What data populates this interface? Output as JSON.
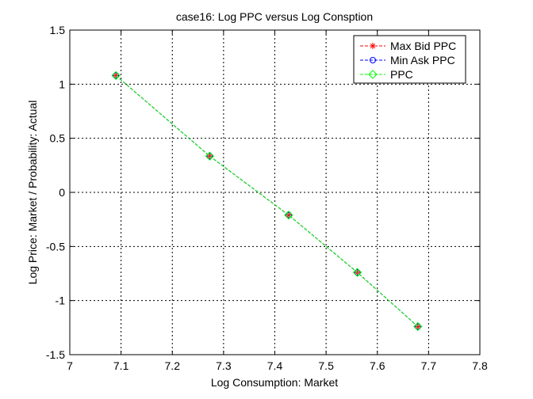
{
  "chart_data": {
    "type": "line",
    "title": "case16: Log PPC versus Log Consption",
    "xlabel": "Log Consumption: Market",
    "ylabel": "Log Price: Market / Probability: Actual",
    "xlim": [
      7,
      7.8
    ],
    "ylim": [
      -1.5,
      1.5
    ],
    "xticks": [
      7,
      7.1,
      7.2,
      7.3,
      7.4,
      7.5,
      7.6,
      7.7,
      7.8
    ],
    "yticks": [
      -1.5,
      -1,
      -0.5,
      0,
      0.5,
      1,
      1.5
    ],
    "xtick_labels": [
      "7",
      "7.1",
      "7.2",
      "7.3",
      "7.4",
      "7.5",
      "7.6",
      "7.7",
      "7.8"
    ],
    "ytick_labels": [
      "-1.5",
      "-1",
      "-0.5",
      "0",
      "0.5",
      "1",
      "1.5"
    ],
    "grid": true,
    "legend_position": "top-right",
    "series": [
      {
        "name": "Max Bid PPC",
        "color": "#ff0000",
        "marker": "star",
        "line_style": "dashed",
        "x": [
          7.09,
          7.273,
          7.427,
          7.561,
          7.679
        ],
        "y": [
          1.08,
          0.335,
          -0.21,
          -0.74,
          -1.24
        ]
      },
      {
        "name": "Min Ask PPC",
        "color": "#0000ff",
        "marker": "circle",
        "line_style": "dashed",
        "x": [
          7.09,
          7.273,
          7.427,
          7.561,
          7.679
        ],
        "y": [
          1.08,
          0.335,
          -0.21,
          -0.74,
          -1.24
        ]
      },
      {
        "name": "PPC",
        "color": "#00ff00",
        "marker": "diamond",
        "line_style": "dashed",
        "x": [
          7.09,
          7.273,
          7.427,
          7.561,
          7.679
        ],
        "y": [
          1.08,
          0.335,
          -0.21,
          -0.74,
          -1.24
        ]
      }
    ]
  }
}
